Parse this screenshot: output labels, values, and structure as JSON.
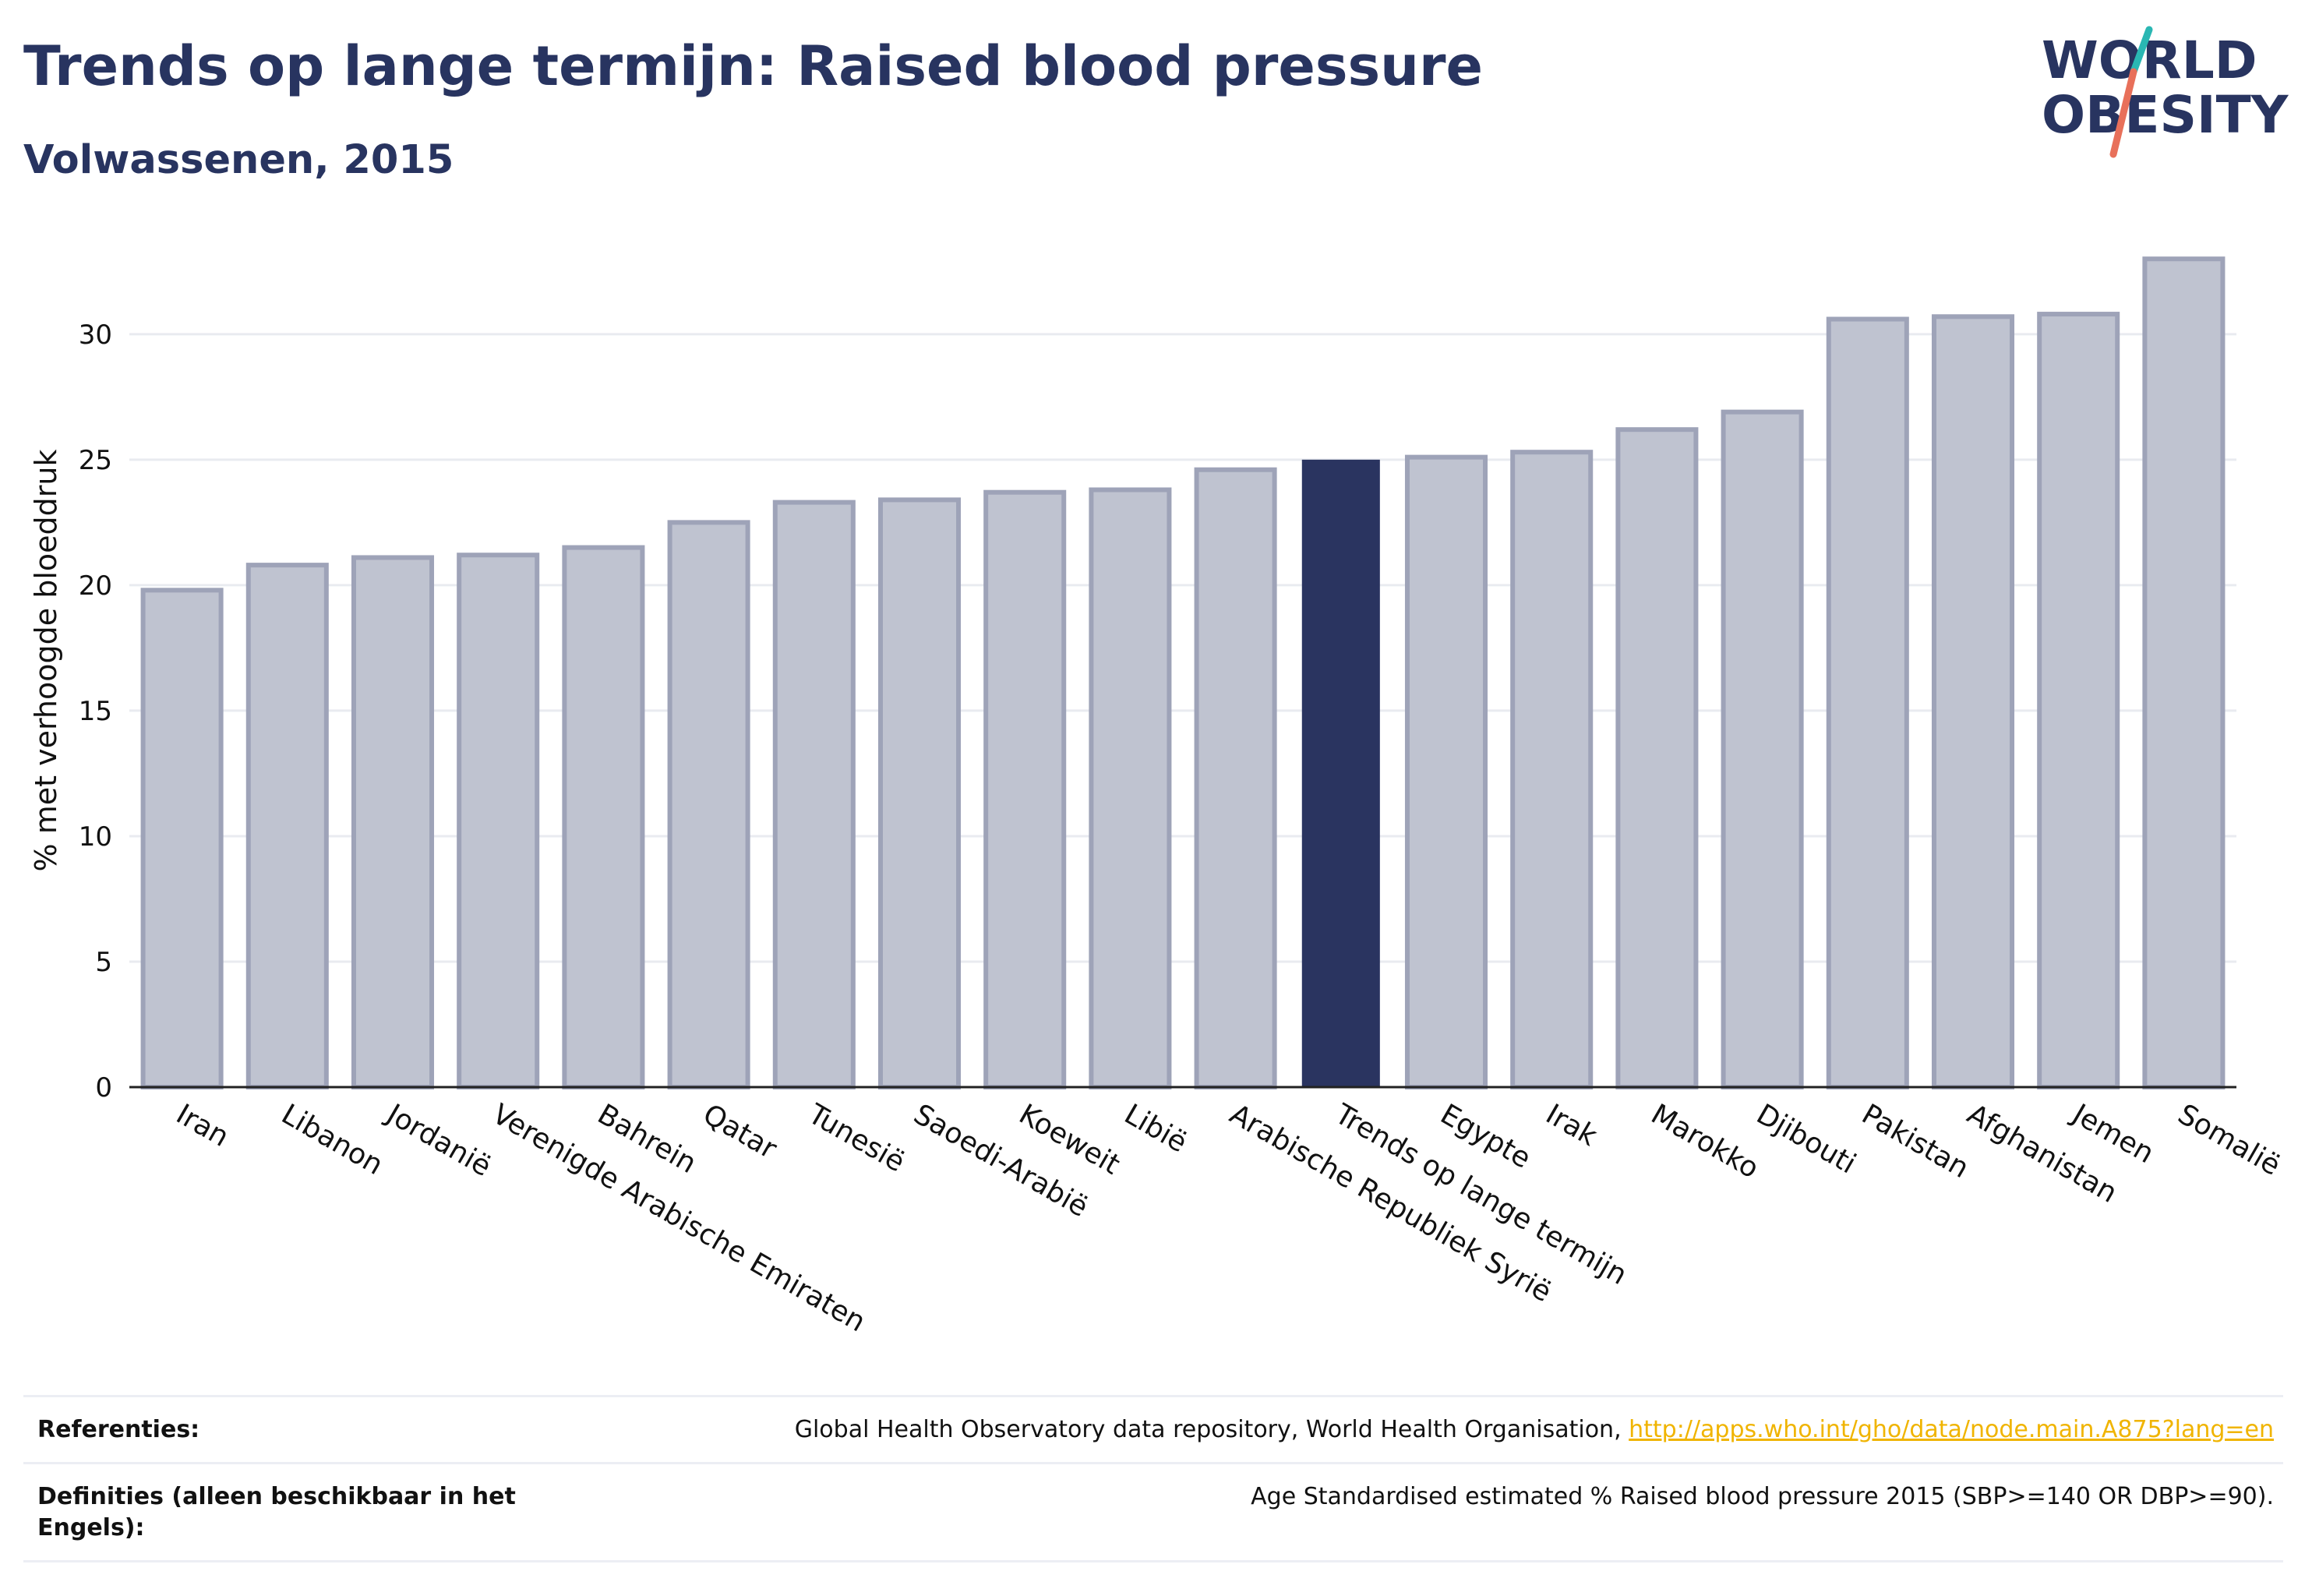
{
  "header": {
    "title": "Trends op lange termijn: Raised blood pressure",
    "subtitle": "Volwassenen, 2015"
  },
  "logo": {
    "line1": "WORLD",
    "line2": "OBESITY",
    "accent_colors": [
      "#2ab7b3",
      "#e8705a"
    ]
  },
  "colors": {
    "bar_fill": "#bfc3d0",
    "bar_stroke": "#9ea3b8",
    "highlight_bar": "#2a3460",
    "grid": "#e9ebf0",
    "axis": "#222222"
  },
  "chart_data": {
    "type": "bar",
    "ylabel": "% met verhoogde bloeddruk",
    "ylim": [
      0,
      34
    ],
    "yticks": [
      0,
      5,
      10,
      15,
      20,
      25,
      30
    ],
    "grid": true,
    "highlight": "Trends op lange termijn",
    "categories": [
      "Iran",
      "Libanon",
      "Jordanië",
      "Verenigde Arabische Emiraten",
      "Bahrein",
      "Qatar",
      "Tunesië",
      "Saoedi-Arabië",
      "Koeweit",
      "Libië",
      "Arabische Republiek Syrië",
      "Trends op lange termijn",
      "Egypte",
      "Irak",
      "Marokko",
      "Djibouti",
      "Pakistan",
      "Afghanistan",
      "Jemen",
      "Somalië"
    ],
    "values": [
      19.8,
      20.8,
      21.1,
      21.2,
      21.5,
      22.5,
      23.3,
      23.4,
      23.7,
      23.8,
      24.6,
      25.0,
      25.1,
      25.3,
      26.2,
      26.9,
      30.6,
      30.7,
      30.8,
      33.0
    ]
  },
  "references": {
    "label": "Referenties:",
    "text": "Global Health Observatory data repository, World Health Organisation, ",
    "link": "http://apps.who.int/gho/data/node.main.A875?lang=en"
  },
  "definitions": {
    "label": "Definities (alleen beschikbaar in het Engels):",
    "text": "Age Standardised estimated % Raised blood pressure 2015 (SBP>=140 OR DBP>=90)."
  }
}
